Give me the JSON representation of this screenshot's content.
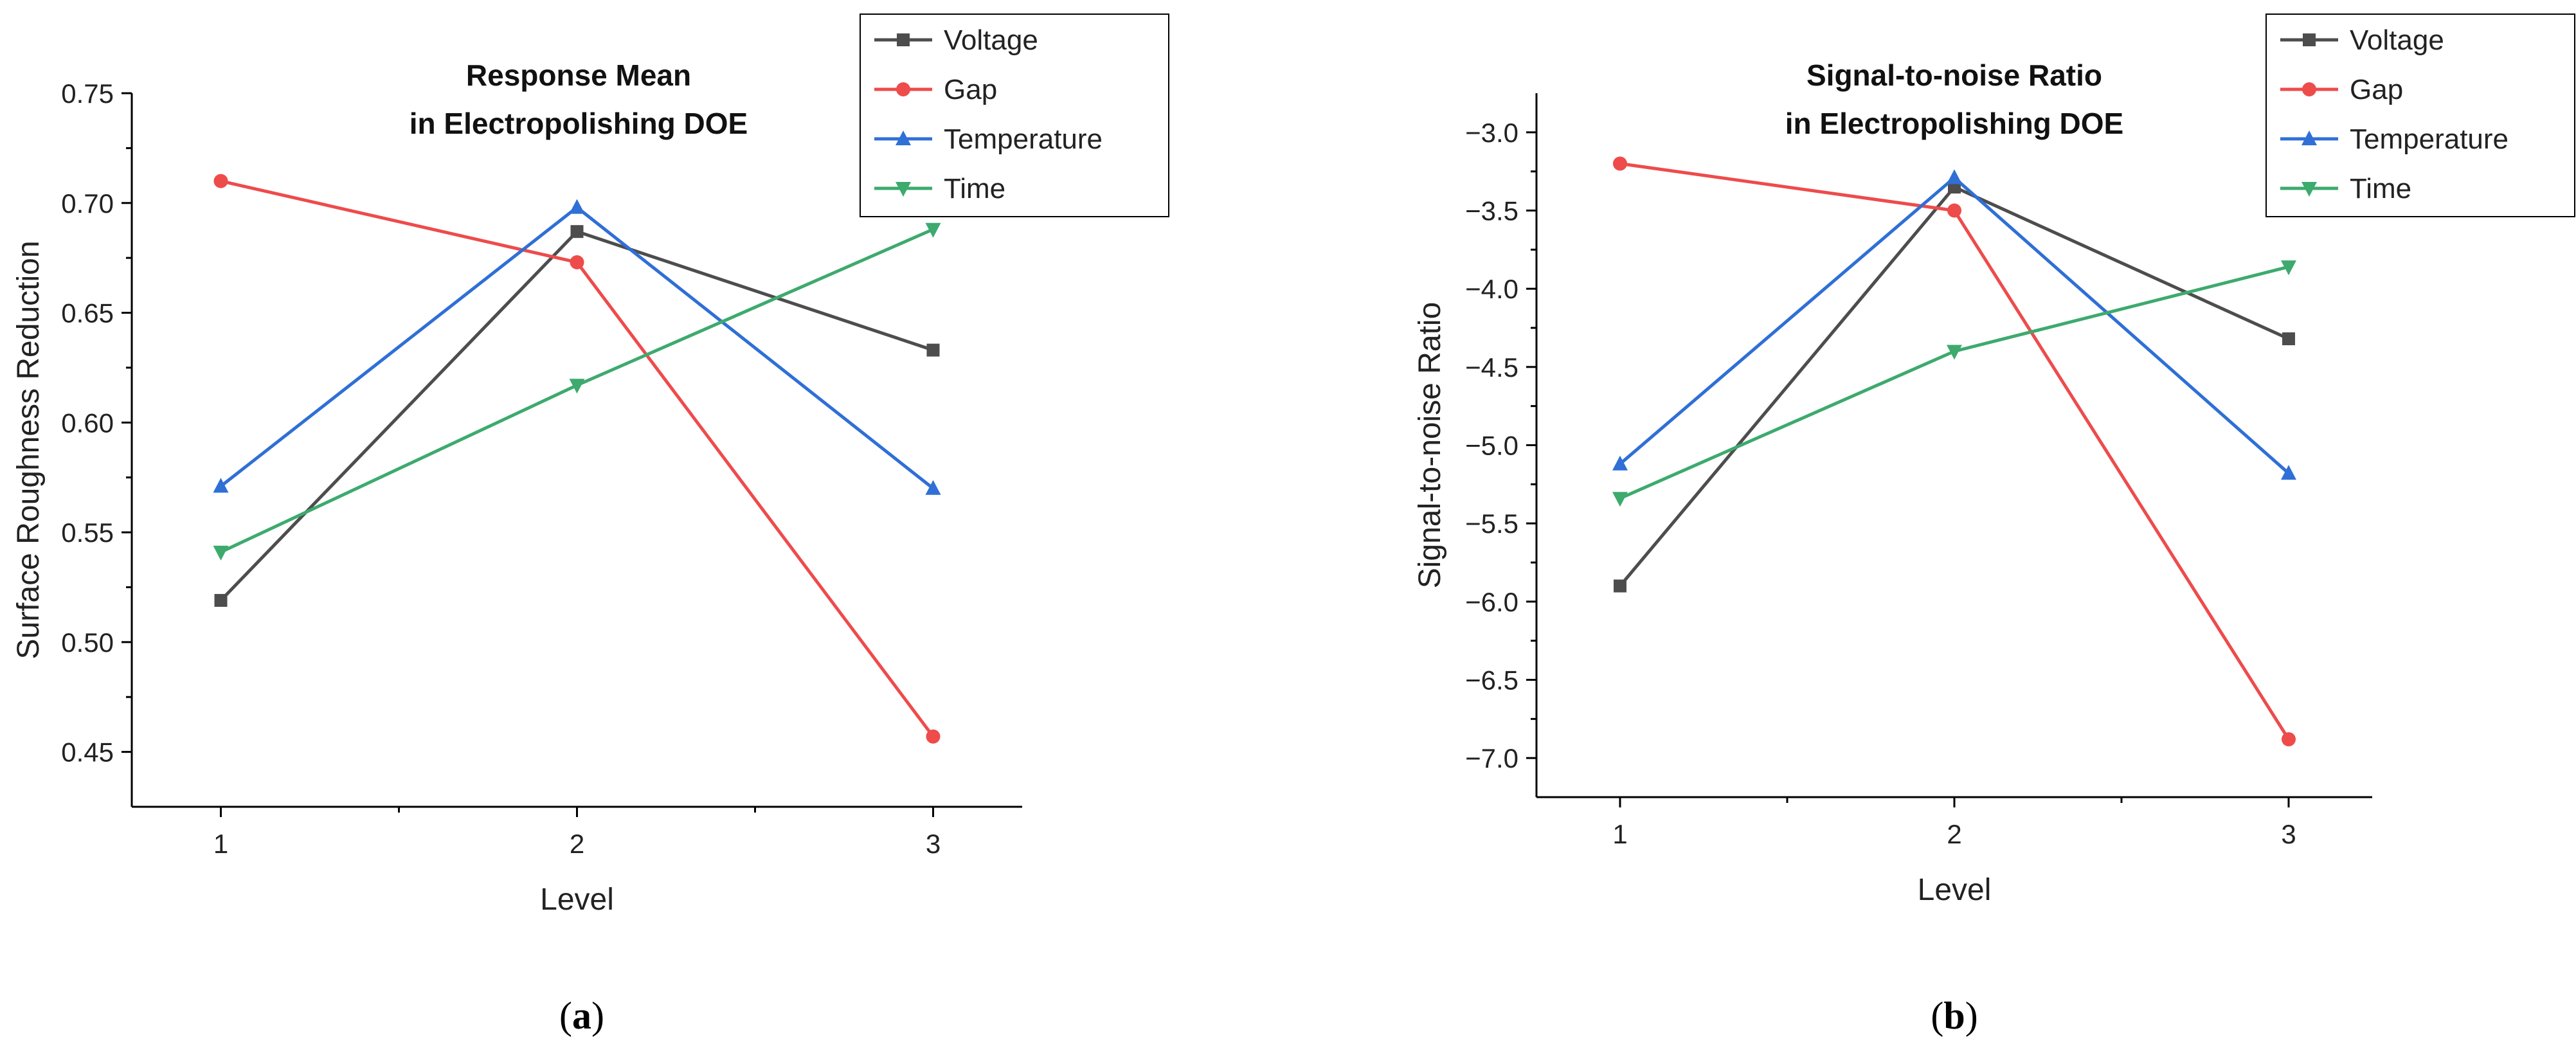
{
  "chart_data": [
    {
      "type": "line",
      "title": [
        "Response Mean",
        "in Electropolishing DOE"
      ],
      "xlabel": "Level",
      "ylabel": "Surface Roughness Reduction",
      "categories": [
        "1",
        "2",
        "3"
      ],
      "x": [
        1,
        2,
        3
      ],
      "xlim": [
        0.75,
        3.25
      ],
      "ylim": [
        0.425,
        0.75
      ],
      "yticks": [
        0.45,
        0.5,
        0.55,
        0.6,
        0.65,
        0.7,
        0.75
      ],
      "ytick_labels": [
        "0.45",
        "0.50",
        "0.55",
        "0.60",
        "0.65",
        "0.70",
        "0.75"
      ],
      "legend_position": "top-right",
      "series": [
        {
          "name": "Voltage",
          "marker": "square",
          "color": "#4d4d4d",
          "values": [
            0.519,
            0.687,
            0.633
          ]
        },
        {
          "name": "Gap",
          "marker": "circle",
          "color": "#ee4b4b",
          "values": [
            0.71,
            0.673,
            0.457
          ]
        },
        {
          "name": "Temperature",
          "marker": "triangle-up",
          "color": "#2f6fd6",
          "values": [
            0.571,
            0.698,
            0.57
          ]
        },
        {
          "name": "Time",
          "marker": "triangle-down",
          "color": "#3daa6e",
          "values": [
            0.541,
            0.617,
            0.688
          ]
        }
      ],
      "caption": "a"
    },
    {
      "type": "line",
      "title": [
        "Signal-to-noise Ratio",
        "in Electropolishing DOE"
      ],
      "xlabel": "Level",
      "ylabel": "Signal-to-noise Ratio",
      "categories": [
        "1",
        "2",
        "3"
      ],
      "x": [
        1,
        2,
        3
      ],
      "xlim": [
        0.75,
        3.25
      ],
      "ylim": [
        -7.25,
        -2.75
      ],
      "yticks": [
        -7.0,
        -6.5,
        -6.0,
        -5.5,
        -5.0,
        -4.5,
        -4.0,
        -3.5,
        -3.0
      ],
      "ytick_labels": [
        "−7.0",
        "−6.5",
        "−6.0",
        "−5.5",
        "−5.0",
        "−4.5",
        "−4.0",
        "−3.5",
        "−3.0"
      ],
      "legend_position": "top-right",
      "series": [
        {
          "name": "Voltage",
          "marker": "square",
          "color": "#4d4d4d",
          "values": [
            -5.9,
            -3.35,
            -4.32
          ]
        },
        {
          "name": "Gap",
          "marker": "circle",
          "color": "#ee4b4b",
          "values": [
            -3.2,
            -3.5,
            -6.88
          ]
        },
        {
          "name": "Temperature",
          "marker": "triangle-up",
          "color": "#2f6fd6",
          "values": [
            -5.12,
            -3.29,
            -5.18
          ]
        },
        {
          "name": "Time",
          "marker": "triangle-down",
          "color": "#3daa6e",
          "values": [
            -5.34,
            -4.4,
            -3.86
          ]
        }
      ],
      "caption": "b"
    }
  ]
}
